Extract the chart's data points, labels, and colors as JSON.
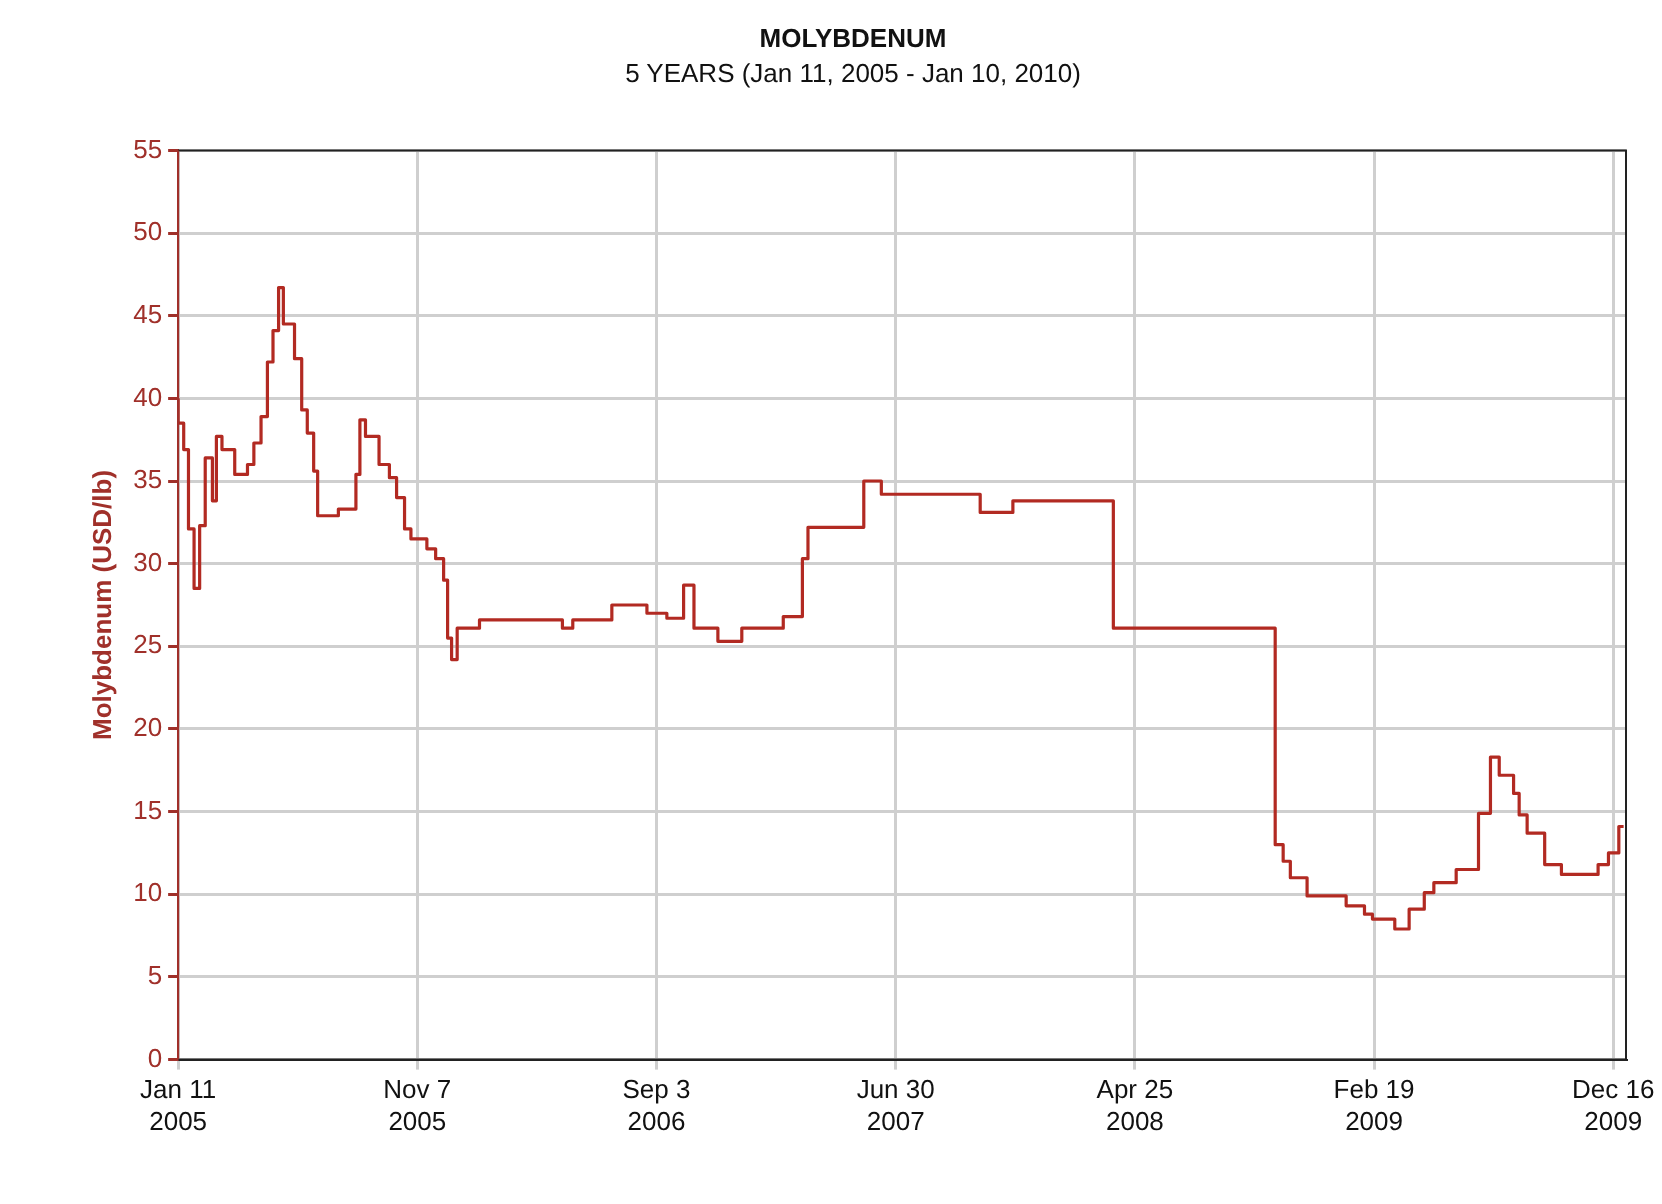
{
  "chart_data": {
    "type": "step",
    "title": "MOLYBDENUM",
    "subtitle": "5 YEARS (Jan 11, 2005 - Jan 10, 2010)",
    "ylabel": "Molybdenum (USD/lb)",
    "x": [
      "2005-01-11",
      "2005-01-18",
      "2005-01-24",
      "2005-01-31",
      "2005-02-07",
      "2005-02-14",
      "2005-02-23",
      "2005-02-28",
      "2005-03-07",
      "2005-03-23",
      "2005-04-08",
      "2005-04-16",
      "2005-04-25",
      "2005-05-03",
      "2005-05-10",
      "2005-05-17",
      "2005-05-23",
      "2005-06-06",
      "2005-06-15",
      "2005-06-22",
      "2005-06-30",
      "2005-07-05",
      "2005-07-31",
      "2005-08-22",
      "2005-08-27",
      "2005-09-03",
      "2005-09-20",
      "2005-10-03",
      "2005-10-12",
      "2005-10-22",
      "2005-10-30",
      "2005-11-19",
      "2005-11-30",
      "2005-12-10",
      "2005-12-15",
      "2005-12-20",
      "2005-12-27",
      "2006-01-24",
      "2006-05-08",
      "2006-05-21",
      "2006-07-09",
      "2006-08-22",
      "2006-09-16",
      "2006-10-07",
      "2006-10-20",
      "2006-11-19",
      "2006-12-19",
      "2007-02-09",
      "2007-03-05",
      "2007-03-12",
      "2007-05-21",
      "2007-06-12",
      "2007-10-14",
      "2007-11-24",
      "2008-03-29",
      "2008-10-18",
      "2008-10-28",
      "2008-11-06",
      "2008-11-27",
      "2009-01-15",
      "2009-02-07",
      "2009-02-17",
      "2009-03-17",
      "2009-04-04",
      "2009-04-23",
      "2009-05-05",
      "2009-06-02",
      "2009-06-30",
      "2009-07-15",
      "2009-07-26",
      "2009-08-13",
      "2009-08-20",
      "2009-08-30",
      "2009-09-21",
      "2009-10-12",
      "2009-11-27",
      "2009-12-10",
      "2009-12-23",
      "2009-12-29"
    ],
    "series": [
      {
        "color": "#b22a22",
        "values": [
          40.0,
          38.5,
          36.9,
          32.1,
          28.5,
          32.3,
          36.4,
          33.8,
          37.7,
          36.9,
          35.4,
          36.0,
          37.3,
          38.9,
          42.2,
          44.1,
          46.7,
          44.5,
          42.4,
          39.3,
          37.9,
          35.6,
          32.9,
          33.3,
          35.4,
          38.7,
          37.7,
          36.0,
          35.2,
          34.0,
          32.1,
          31.5,
          30.9,
          30.3,
          29.0,
          25.5,
          24.2,
          26.1,
          26.6,
          26.1,
          26.6,
          27.5,
          27.0,
          26.7,
          28.7,
          26.1,
          25.3,
          26.1,
          26.8,
          30.3,
          32.2,
          35.0,
          34.2,
          33.1,
          33.8,
          26.1,
          13.0,
          12.0,
          11.0,
          9.9,
          9.3,
          8.8,
          8.5,
          7.9,
          9.1,
          10.1,
          10.7,
          11.5,
          14.9,
          18.3,
          17.2,
          16.1,
          14.8,
          13.7,
          11.8,
          11.2,
          11.8,
          12.5,
          14.1
        ]
      }
    ],
    "xlim": [
      "2005-01-11",
      "2010-01-01"
    ],
    "xticks": [
      {
        "value": "2005-01-11",
        "label": "Jan 11 2005"
      },
      {
        "value": "2005-11-07",
        "label": "Nov 7 2005"
      },
      {
        "value": "2006-09-03",
        "label": "Sep 3 2006"
      },
      {
        "value": "2007-06-30",
        "label": "Jun 30 2007"
      },
      {
        "value": "2008-04-25",
        "label": "Apr 25 2008"
      },
      {
        "value": "2009-02-19",
        "label": "Feb 19 2009"
      },
      {
        "value": "2009-12-16",
        "label": "Dec 16 2009"
      }
    ],
    "ylim": [
      0,
      55
    ],
    "yticks": [
      0,
      5,
      10,
      15,
      20,
      25,
      30,
      35,
      40,
      45,
      50,
      55
    ],
    "grid": true,
    "legend": false,
    "marker": "none",
    "line_style": "solid"
  }
}
